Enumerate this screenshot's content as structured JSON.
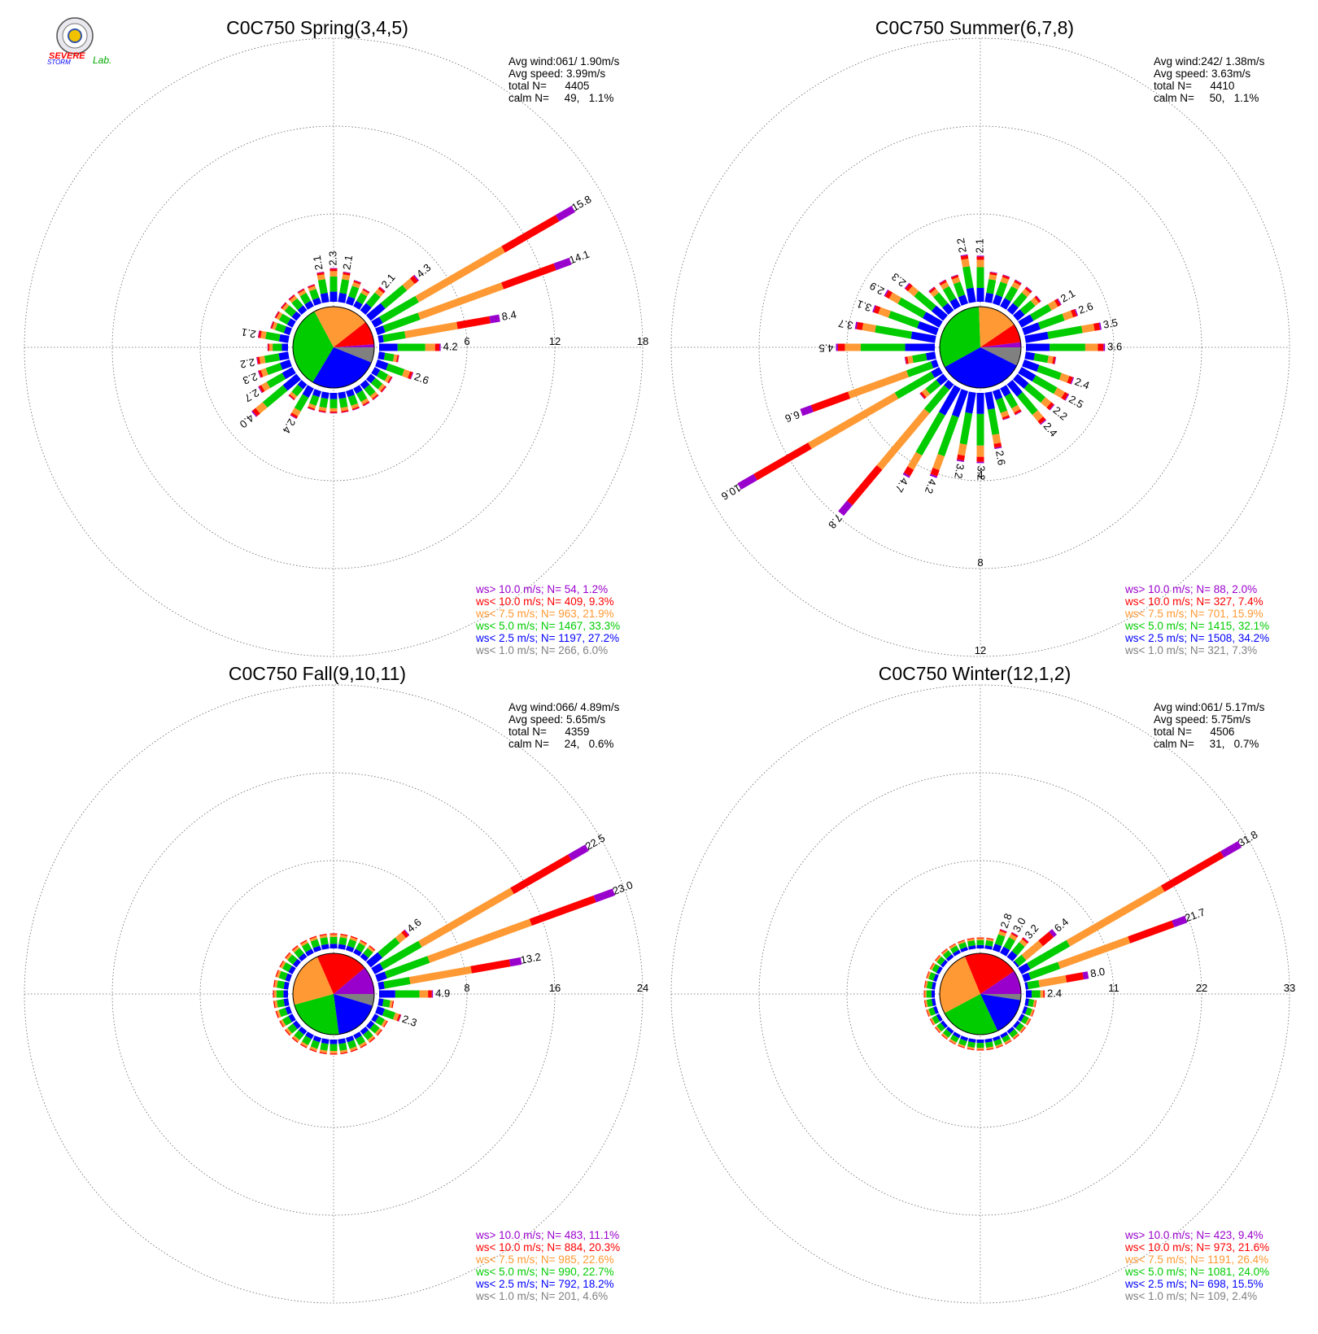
{
  "logo": {
    "top": "SEVERE",
    "bottom": "STORM",
    "suffix": "Lab."
  },
  "colors": {
    "purple": "#9900cc",
    "red": "#ff0000",
    "orange": "#ff9933",
    "green": "#00cc00",
    "blue": "#0000ff",
    "gray": "#808080"
  },
  "chart_data": [
    {
      "type": "windrose",
      "title": "C0C750 Spring(3,4,5)",
      "stats": {
        "avg_wind": "Avg wind:061/ 1.90m/s",
        "avg_speed": "Avg speed: 3.99m/s",
        "total": "total N=      4405",
        "calm": "calm N=     49,   1.1%"
      },
      "ring_labels": [
        "6",
        "12",
        "18"
      ],
      "rmax": 18,
      "pie": [
        6.0,
        27.2,
        33.3,
        21.9,
        9.3,
        1.2
      ],
      "sectors": [
        {
          "dir": 90,
          "total": 4.2,
          "label": "4.2"
        },
        {
          "dir": 80,
          "total": 8.4,
          "label": "8.4"
        },
        {
          "dir": 70,
          "total": 14.1,
          "label": "14.1"
        },
        {
          "dir": 60,
          "total": 15.8,
          "label": "15.8"
        },
        {
          "dir": 50,
          "total": 4.3,
          "label": "4.3"
        },
        {
          "dir": 40,
          "total": 2.1,
          "label": "2.1"
        },
        {
          "dir": 20,
          "total": 1.7,
          "label": ""
        },
        {
          "dir": 10,
          "total": 2.1,
          "label": "2.1"
        },
        {
          "dir": 0,
          "total": 2.3,
          "label": "2.3"
        },
        {
          "dir": 350,
          "total": 2.1,
          "label": "2.1"
        },
        {
          "dir": 280,
          "total": 2.1,
          "label": "2.1"
        },
        {
          "dir": 260,
          "total": 2.2,
          "label": "2.2"
        },
        {
          "dir": 250,
          "total": 2.3,
          "label": "2.3"
        },
        {
          "dir": 240,
          "total": 2.7,
          "label": "2.7"
        },
        {
          "dir": 230,
          "total": 4.0,
          "label": "4.0"
        },
        {
          "dir": 210,
          "total": 2.4,
          "label": "2.4"
        },
        {
          "dir": 110,
          "total": 2.6,
          "label": "2.6"
        }
      ],
      "legend": [
        {
          "text": "ws> 10.0 m/s; N=    54,  1.2%",
          "color": "#9900cc"
        },
        {
          "text": "ws< 10.0 m/s; N=   409,  9.3%",
          "color": "#ff0000"
        },
        {
          "text": "ws<  7.5 m/s; N=   963, 21.9%",
          "color": "#ff9933"
        },
        {
          "text": "ws<  5.0 m/s; N=  1467, 33.3%",
          "color": "#00cc00"
        },
        {
          "text": "ws<  2.5 m/s; N=  1197, 27.2%",
          "color": "#0000ff"
        },
        {
          "text": "ws<  1.0 m/s; N=   266,  6.0%",
          "color": "#808080"
        }
      ]
    },
    {
      "type": "windrose",
      "title": "C0C750 Summer(6,7,8)",
      "stats": {
        "avg_wind": "Avg wind:242/ 1.38m/s",
        "avg_speed": "Avg speed: 3.63m/s",
        "total": "total N=      4410",
        "calm": "calm N=     50,   1.1%"
      },
      "ring_labels": [
        "4",
        "8",
        "12"
      ],
      "rmax": 12,
      "pie": [
        7.3,
        34.2,
        32.1,
        15.9,
        7.4,
        2.0
      ],
      "sectors": [
        {
          "dir": 90,
          "total": 3.6,
          "label": "3.6"
        },
        {
          "dir": 80,
          "total": 3.5,
          "label": "3.5"
        },
        {
          "dir": 70,
          "total": 2.6,
          "label": "2.6"
        },
        {
          "dir": 60,
          "total": 2.1,
          "label": "2.1"
        },
        {
          "dir": 0,
          "total": 2.1,
          "label": "2.1"
        },
        {
          "dir": 350,
          "total": 2.2,
          "label": "2.2"
        },
        {
          "dir": 310,
          "total": 2.3,
          "label": "2.3"
        },
        {
          "dir": 300,
          "total": 2.9,
          "label": "2.9"
        },
        {
          "dir": 290,
          "total": 3.1,
          "label": "3.1"
        },
        {
          "dir": 280,
          "total": 3.7,
          "label": "3.7"
        },
        {
          "dir": 270,
          "total": 4.5,
          "label": "4.5"
        },
        {
          "dir": 250,
          "total": 6.6,
          "label": "6.6"
        },
        {
          "dir": 240,
          "total": 10.6,
          "label": "10.6"
        },
        {
          "dir": 220,
          "total": 7.8,
          "label": "7.8"
        },
        {
          "dir": 210,
          "total": 4.7,
          "label": "4.7"
        },
        {
          "dir": 200,
          "total": 4.2,
          "label": "4.2"
        },
        {
          "dir": 190,
          "total": 3.2,
          "label": "3.2"
        },
        {
          "dir": 180,
          "total": 3.2,
          "label": "3.2"
        },
        {
          "dir": 170,
          "total": 2.6,
          "label": "2.6"
        },
        {
          "dir": 110,
          "total": 2.4,
          "label": "2.4"
        },
        {
          "dir": 120,
          "total": 2.5,
          "label": "2.5"
        },
        {
          "dir": 130,
          "total": 2.2,
          "label": "2.2"
        },
        {
          "dir": 140,
          "total": 2.4,
          "label": "2.4"
        }
      ],
      "legend": [
        {
          "text": "ws> 10.0 m/s; N=    88,  2.0%",
          "color": "#9900cc"
        },
        {
          "text": "ws< 10.0 m/s; N=   327,  7.4%",
          "color": "#ff0000"
        },
        {
          "text": "ws<  7.5 m/s; N=   701, 15.9%",
          "color": "#ff9933"
        },
        {
          "text": "ws<  5.0 m/s; N=  1415, 32.1%",
          "color": "#00cc00"
        },
        {
          "text": "ws<  2.5 m/s; N=  1508, 34.2%",
          "color": "#0000ff"
        },
        {
          "text": "ws<  1.0 m/s; N=   321,  7.3%",
          "color": "#808080"
        }
      ]
    },
    {
      "type": "windrose",
      "title": "C0C750 Fall(9,10,11)",
      "stats": {
        "avg_wind": "Avg wind:066/ 4.89m/s",
        "avg_speed": "Avg speed: 5.65m/s",
        "total": "total N=      4359",
        "calm": "calm N=     24,   0.6%"
      },
      "ring_labels": [
        "8",
        "16",
        "24"
      ],
      "rmax": 24,
      "pie": [
        4.6,
        18.2,
        22.7,
        22.6,
        20.3,
        11.1
      ],
      "sectors": [
        {
          "dir": 90,
          "total": 4.9,
          "label": "4.9"
        },
        {
          "dir": 80,
          "total": 13.2,
          "label": "13.2"
        },
        {
          "dir": 70,
          "total": 23.0,
          "label": "23.0"
        },
        {
          "dir": 60,
          "total": 22.5,
          "label": "22.5"
        },
        {
          "dir": 50,
          "total": 4.6,
          "label": "4.6"
        },
        {
          "dir": 110,
          "total": 2.3,
          "label": "2.3"
        }
      ],
      "legend": [
        {
          "text": "ws> 10.0 m/s; N=   483, 11.1%",
          "color": "#9900cc"
        },
        {
          "text": "ws< 10.0 m/s; N=   884, 20.3%",
          "color": "#ff0000"
        },
        {
          "text": "ws<  7.5 m/s; N=   985, 22.6%",
          "color": "#ff9933"
        },
        {
          "text": "ws<  5.0 m/s; N=   990, 22.7%",
          "color": "#00cc00"
        },
        {
          "text": "ws<  2.5 m/s; N=   792, 18.2%",
          "color": "#0000ff"
        },
        {
          "text": "ws<  1.0 m/s; N=   201,  4.6%",
          "color": "#808080"
        }
      ]
    },
    {
      "type": "windrose",
      "title": "C0C750 Winter(12,1,2)",
      "stats": {
        "avg_wind": "Avg wind:061/ 5.17m/s",
        "avg_speed": "Avg speed: 5.75m/s",
        "total": "total N=      4506",
        "calm": "calm N=     31,   0.7%"
      },
      "ring_labels": [
        "11",
        "22",
        "33"
      ],
      "rmax": 33,
      "pie": [
        2.4,
        15.5,
        24.0,
        26.4,
        21.6,
        9.4
      ],
      "sectors": [
        {
          "dir": 90,
          "total": 2.4,
          "label": "2.4"
        },
        {
          "dir": 80,
          "total": 8.0,
          "label": "8.0"
        },
        {
          "dir": 70,
          "total": 21.7,
          "label": "21.7"
        },
        {
          "dir": 60,
          "total": 31.8,
          "label": "31.8"
        },
        {
          "dir": 50,
          "total": 6.4,
          "label": "6.4"
        },
        {
          "dir": 40,
          "total": 3.2,
          "label": "3.2"
        },
        {
          "dir": 30,
          "total": 3.0,
          "label": "3.0"
        },
        {
          "dir": 20,
          "total": 2.8,
          "label": "2.8"
        }
      ],
      "legend": [
        {
          "text": "ws> 10.0 m/s; N=   423,  9.4%",
          "color": "#9900cc"
        },
        {
          "text": "ws< 10.0 m/s; N=   973, 21.6%",
          "color": "#ff0000"
        },
        {
          "text": "ws<  7.5 m/s; N=  1191, 26.4%",
          "color": "#ff9933"
        },
        {
          "text": "ws<  5.0 m/s; N=  1081, 24.0%",
          "color": "#00cc00"
        },
        {
          "text": "ws<  2.5 m/s; N=   698, 15.5%",
          "color": "#0000ff"
        },
        {
          "text": "ws<  1.0 m/s; N=   109,  2.4%",
          "color": "#808080"
        }
      ]
    }
  ]
}
